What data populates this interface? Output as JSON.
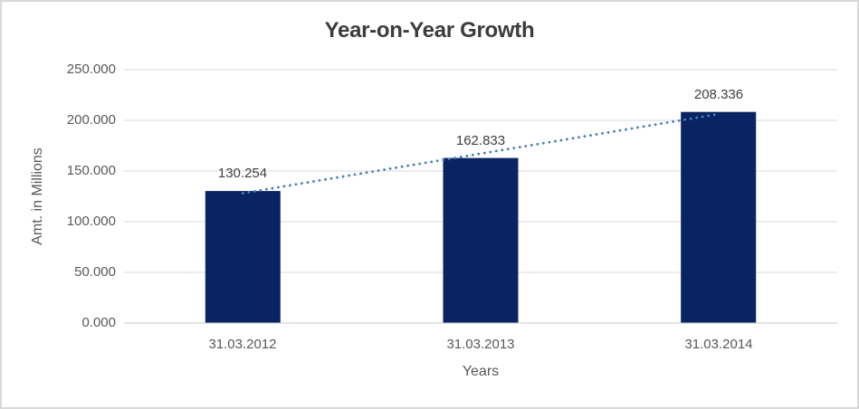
{
  "chart_data": {
    "type": "bar",
    "title": "Year-on-Year Growth",
    "xlabel": "Years",
    "ylabel": "Amt. in Millions",
    "categories": [
      "31.03.2012",
      "31.03.2013",
      "31.03.2014"
    ],
    "values": [
      130.254,
      162.833,
      208.336
    ],
    "data_labels": [
      "130.254",
      "162.833",
      "208.336"
    ],
    "ylim": [
      0,
      250
    ],
    "ytick_values": [
      0,
      50,
      100,
      150,
      200,
      250
    ],
    "ytick_labels": [
      "0.000",
      "50.000",
      "100.000",
      "150.000",
      "200.000",
      "250.000"
    ],
    "grid": true,
    "legend": "none",
    "trendline": {
      "type": "linear",
      "style": "dotted",
      "color": "#4a7ebb"
    },
    "colors": {
      "bar": "#0a2463",
      "gridline": "#d9d9d9",
      "axis_line": "#c9c9c9",
      "title_text": "#3c3c3c",
      "tick_text": "#595959",
      "data_label_text": "#404040",
      "border": "#d9d9d9",
      "background": "#ffffff"
    }
  }
}
